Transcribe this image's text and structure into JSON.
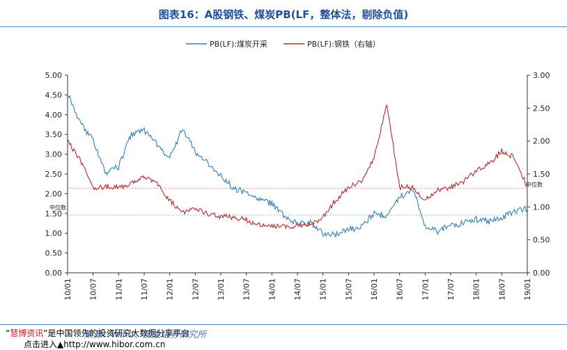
{
  "title": "图表16：A股钢铁、煤炭PB(LF，整体法，剔除负值)",
  "source": "来源：Wind、国金证券研究所",
  "footer": {
    "line1_quote_open": "“",
    "line1_red": "慧博资讯",
    "line1_rest": "”是中国领先的投资研究大数据分享平台",
    "line2_prefix": "点击进入",
    "line2_url": "http://www.hibor.com.cn"
  },
  "chart_data": {
    "type": "line",
    "title": "",
    "x_tick_labels": [
      "10/01",
      "10/07",
      "11/01",
      "11/07",
      "12/01",
      "12/07",
      "13/01",
      "13/07",
      "14/01",
      "14/07",
      "15/01",
      "15/07",
      "16/01",
      "16/07",
      "17/01",
      "17/07",
      "18/01",
      "18/07",
      "19/01"
    ],
    "left_axis": {
      "ylim": [
        0,
        5
      ],
      "ticks": [
        "0.00",
        "0.50",
        "1.00",
        "1.50",
        "2.00",
        "2.50",
        "3.00",
        "3.50",
        "4.00",
        "4.50",
        "5.00"
      ]
    },
    "right_axis": {
      "ylim": [
        0,
        3
      ],
      "ticks": [
        "0.00",
        "0.50",
        "1.00",
        "1.50",
        "2.00",
        "2.50",
        "3.00"
      ]
    },
    "legend": {
      "placement": "top-center"
    },
    "grid": false,
    "series": [
      {
        "name": "PB(LF):煤炭开采",
        "axis": "left",
        "color": "#2f7fc1",
        "x": [
          0,
          0.5,
          1,
          1.5,
          2,
          2.5,
          3,
          3.5,
          4,
          4.5,
          5,
          5.5,
          6,
          6.5,
          7,
          7.5,
          8,
          8.5,
          9,
          9.5,
          10,
          10.5,
          11,
          11.5,
          12,
          12.5,
          13,
          13.5,
          14,
          14.5,
          15,
          15.5,
          16,
          16.5,
          17,
          17.5,
          18
        ],
        "values": [
          4.55,
          3.8,
          3.35,
          2.5,
          2.7,
          3.5,
          3.6,
          3.25,
          2.9,
          3.65,
          3.05,
          2.75,
          2.45,
          2.15,
          2.0,
          1.85,
          1.75,
          1.4,
          1.25,
          1.25,
          1.0,
          0.97,
          1.1,
          1.15,
          1.5,
          1.45,
          1.9,
          2.15,
          1.2,
          1.05,
          1.2,
          1.25,
          1.35,
          1.3,
          1.4,
          1.55,
          1.62
        ]
      },
      {
        "name": "PB(LF):钢铁（右轴）",
        "axis": "right",
        "color": "#c0282c",
        "x": [
          0,
          0.5,
          1,
          1.5,
          2,
          2.5,
          3,
          3.5,
          4,
          4.5,
          5,
          5.5,
          6,
          6.5,
          7,
          7.5,
          8,
          8.5,
          9,
          9.5,
          10,
          10.5,
          11,
          11.5,
          12,
          12.5,
          13,
          13.5,
          14,
          14.5,
          15,
          15.5,
          16,
          16.5,
          17,
          17.5,
          18
        ],
        "values": [
          2.0,
          1.7,
          1.3,
          1.3,
          1.3,
          1.35,
          1.45,
          1.35,
          1.1,
          0.9,
          0.98,
          0.9,
          0.85,
          0.85,
          0.8,
          0.72,
          0.7,
          0.7,
          0.7,
          0.72,
          0.85,
          1.1,
          1.3,
          1.4,
          1.75,
          2.55,
          1.3,
          1.3,
          1.1,
          1.25,
          1.3,
          1.38,
          1.55,
          1.65,
          1.85,
          1.75,
          1.3
        ]
      }
    ],
    "reference_lines": [
      {
        "label": "中位数",
        "axis": "left",
        "value": 1.46,
        "color": "#2f7fc1"
      },
      {
        "label": "中位数",
        "axis": "right",
        "value": 1.28,
        "color": "#c0282c"
      }
    ]
  }
}
